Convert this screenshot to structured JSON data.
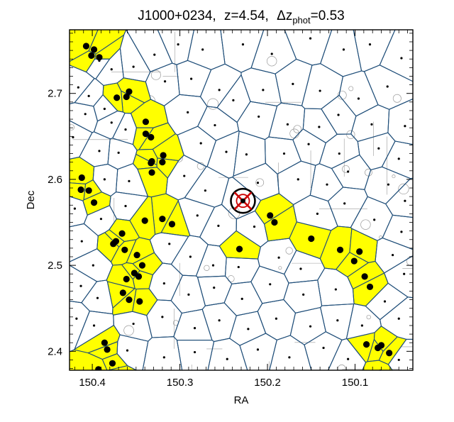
{
  "chart_data": {
    "type": "scatter",
    "title": {
      "name": "J1000+0234,",
      "z_text": "z=4.54,",
      "delta_symbol": "Δz",
      "delta_sub": "phot",
      "delta_value": "=0.53"
    },
    "xlabel": "RA",
    "ylabel": "Dec",
    "xlim": [
      150.426,
      150.034
    ],
    "ylim": [
      2.378,
      2.774
    ],
    "x_direction": "decreasing",
    "xticks": [
      150.4,
      150.3,
      150.2,
      150.1
    ],
    "xtick_labels": [
      "150.4",
      "150.3",
      "150.2",
      "150.1"
    ],
    "yticks": [
      2.4,
      2.5,
      2.6,
      2.7
    ],
    "ytick_labels": [
      "2.4",
      "2.5",
      "2.6",
      "2.7"
    ],
    "grid": false,
    "colors": {
      "highlight_cell": "#ffff00",
      "cell_edge": "#1f4e79",
      "marker": "#000000",
      "target_ring": "#000000",
      "target_cross": "#cc0000",
      "background_trace": "#9a9a9a"
    },
    "target": {
      "ra": 150.228,
      "dec": 2.575
    },
    "highlighted_members": [
      [
        150.407,
        2.755
      ],
      [
        150.401,
        2.744
      ],
      [
        150.392,
        2.742
      ],
      [
        150.398,
        2.751
      ],
      [
        150.361,
        2.696
      ],
      [
        150.358,
        2.702
      ],
      [
        150.372,
        2.695
      ],
      [
        150.339,
        2.667
      ],
      [
        150.339,
        2.653
      ],
      [
        150.333,
        2.649
      ],
      [
        150.319,
        2.628
      ],
      [
        150.332,
        2.621
      ],
      [
        150.333,
        2.619
      ],
      [
        150.32,
        2.62
      ],
      [
        150.332,
        2.608
      ],
      [
        150.412,
        2.602
      ],
      [
        150.413,
        2.588
      ],
      [
        150.404,
        2.587
      ],
      [
        150.398,
        2.573
      ],
      [
        150.32,
        2.554
      ],
      [
        150.309,
        2.548
      ],
      [
        150.34,
        2.552
      ],
      [
        150.366,
        2.537
      ],
      [
        150.373,
        2.528
      ],
      [
        150.376,
        2.525
      ],
      [
        150.363,
        2.518
      ],
      [
        150.349,
        2.512
      ],
      [
        150.343,
        2.5
      ],
      [
        150.352,
        2.491
      ],
      [
        150.347,
        2.487
      ],
      [
        150.361,
        2.484
      ],
      [
        150.365,
        2.468
      ],
      [
        150.358,
        2.46
      ],
      [
        150.346,
        2.458
      ],
      [
        150.232,
        2.519
      ],
      [
        150.197,
        2.558
      ],
      [
        150.192,
        2.55
      ],
      [
        150.15,
        2.531
      ],
      [
        150.117,
        2.518
      ],
      [
        150.095,
        2.516
      ],
      [
        150.101,
        2.505
      ],
      [
        150.089,
        2.487
      ],
      [
        150.083,
        2.475
      ],
      [
        150.386,
        2.41
      ],
      [
        150.383,
        2.402
      ],
      [
        150.393,
        2.379
      ],
      [
        150.377,
        2.386
      ],
      [
        150.374,
        2.373
      ],
      [
        150.393,
        2.368
      ],
      [
        150.087,
        2.408
      ],
      [
        150.074,
        2.404
      ],
      [
        150.07,
        2.407
      ],
      [
        150.061,
        2.398
      ],
      [
        150.071,
        2.375
      ]
    ],
    "other_sources": [
      [
        150.392,
        2.738
      ],
      [
        150.378,
        2.728
      ],
      [
        150.353,
        2.731
      ],
      [
        150.329,
        2.745
      ],
      [
        150.302,
        2.757
      ],
      [
        150.274,
        2.751
      ],
      [
        150.228,
        2.757
      ],
      [
        150.195,
        2.746
      ],
      [
        150.151,
        2.764
      ],
      [
        150.113,
        2.751
      ],
      [
        150.083,
        2.757
      ],
      [
        150.047,
        2.741
      ],
      [
        150.416,
        2.707
      ],
      [
        150.404,
        2.697
      ],
      [
        150.386,
        2.682
      ],
      [
        150.317,
        2.714
      ],
      [
        150.287,
        2.717
      ],
      [
        150.255,
        2.704
      ],
      [
        150.239,
        2.692
      ],
      [
        150.205,
        2.704
      ],
      [
        150.171,
        2.711
      ],
      [
        150.14,
        2.703
      ],
      [
        150.096,
        2.694
      ],
      [
        150.063,
        2.708
      ],
      [
        150.408,
        2.676
      ],
      [
        150.378,
        2.666
      ],
      [
        150.362,
        2.658
      ],
      [
        150.291,
        2.678
      ],
      [
        150.26,
        2.663
      ],
      [
        150.21,
        2.673
      ],
      [
        150.177,
        2.664
      ],
      [
        150.141,
        2.661
      ],
      [
        150.119,
        2.675
      ],
      [
        150.081,
        2.664
      ],
      [
        150.043,
        2.662
      ],
      [
        150.422,
        2.649
      ],
      [
        150.392,
        2.633
      ],
      [
        150.37,
        2.631
      ],
      [
        150.276,
        2.642
      ],
      [
        150.247,
        2.632
      ],
      [
        150.224,
        2.629
      ],
      [
        150.181,
        2.63
      ],
      [
        150.153,
        2.641
      ],
      [
        150.118,
        2.63
      ],
      [
        150.073,
        2.636
      ],
      [
        150.05,
        2.624
      ],
      [
        150.386,
        2.6
      ],
      [
        150.358,
        2.598
      ],
      [
        150.295,
        2.604
      ],
      [
        150.271,
        2.587
      ],
      [
        150.211,
        2.596
      ],
      [
        150.165,
        2.6
      ],
      [
        150.132,
        2.594
      ],
      [
        150.108,
        2.609
      ],
      [
        150.062,
        2.594
      ],
      [
        150.043,
        2.575
      ],
      [
        150.42,
        2.566
      ],
      [
        150.39,
        2.554
      ],
      [
        150.362,
        2.569
      ],
      [
        150.28,
        2.558
      ],
      [
        150.256,
        2.546
      ],
      [
        150.215,
        2.545
      ],
      [
        150.143,
        2.56
      ],
      [
        150.112,
        2.572
      ],
      [
        150.078,
        2.553
      ],
      [
        150.047,
        2.539
      ],
      [
        150.412,
        2.528
      ],
      [
        150.399,
        2.5
      ],
      [
        150.312,
        2.525
      ],
      [
        150.288,
        2.51
      ],
      [
        150.262,
        2.5
      ],
      [
        150.233,
        2.498
      ],
      [
        150.187,
        2.509
      ],
      [
        150.162,
        2.496
      ],
      [
        150.057,
        2.512
      ],
      [
        150.044,
        2.49
      ],
      [
        150.413,
        2.476
      ],
      [
        150.394,
        2.462
      ],
      [
        150.318,
        2.479
      ],
      [
        150.29,
        2.466
      ],
      [
        150.261,
        2.474
      ],
      [
        150.229,
        2.461
      ],
      [
        150.197,
        2.478
      ],
      [
        150.159,
        2.466
      ],
      [
        150.122,
        2.472
      ],
      [
        150.066,
        2.458
      ],
      [
        150.418,
        2.438
      ],
      [
        150.398,
        2.43
      ],
      [
        150.353,
        2.432
      ],
      [
        150.32,
        2.44
      ],
      [
        150.283,
        2.427
      ],
      [
        150.255,
        2.436
      ],
      [
        150.222,
        2.426
      ],
      [
        150.19,
        2.438
      ],
      [
        150.151,
        2.429
      ],
      [
        150.12,
        2.436
      ],
      [
        150.092,
        2.43
      ],
      [
        150.05,
        2.438
      ],
      [
        150.36,
        2.401
      ],
      [
        150.318,
        2.393
      ],
      [
        150.283,
        2.399
      ],
      [
        150.246,
        2.391
      ],
      [
        150.211,
        2.402
      ],
      [
        150.175,
        2.393
      ],
      [
        150.136,
        2.404
      ],
      [
        150.108,
        2.391
      ],
      [
        150.05,
        2.39
      ]
    ]
  }
}
